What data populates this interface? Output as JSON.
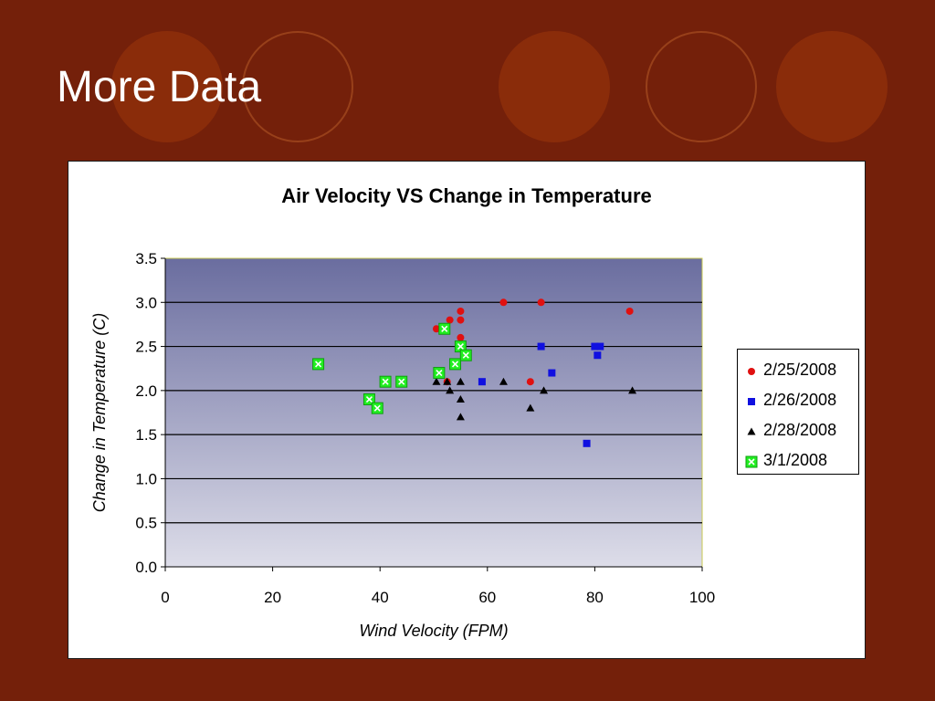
{
  "slide": {
    "title": "More Data"
  },
  "colors": {
    "background": "#74200a",
    "circle": "#8a2c0a",
    "ring": "#98401a"
  },
  "chart_data": {
    "type": "scatter",
    "title": "Air Velocity VS Change in Temperature",
    "xlabel": "Wind Velocity (FPM)",
    "ylabel": "Change in Temperature (C)",
    "xlim": [
      0,
      100
    ],
    "ylim": [
      0,
      3.5
    ],
    "xticks": [
      "0",
      "20",
      "40",
      "60",
      "80",
      "100"
    ],
    "yticks": [
      "0.0",
      "0.5",
      "1.0",
      "1.5",
      "2.0",
      "2.5",
      "3.0",
      "3.5"
    ],
    "grid": "horizontal",
    "legend_position": "right",
    "series": [
      {
        "name": "2/25/2008",
        "marker": "circle",
        "color": "#e01010",
        "points": [
          [
            50.5,
            2.7
          ],
          [
            52.5,
            2.1
          ],
          [
            53,
            2.8
          ],
          [
            55,
            2.9
          ],
          [
            55,
            2.8
          ],
          [
            55,
            2.6
          ],
          [
            63,
            3.0
          ],
          [
            68,
            2.1
          ],
          [
            70,
            3.0
          ],
          [
            86.5,
            2.9
          ]
        ]
      },
      {
        "name": "2/26/2008",
        "marker": "square",
        "color": "#1010e0",
        "points": [
          [
            59,
            2.1
          ],
          [
            70,
            2.5
          ],
          [
            72,
            2.2
          ],
          [
            78.5,
            1.4
          ],
          [
            80,
            2.5
          ],
          [
            80.5,
            2.4
          ],
          [
            81,
            2.5
          ]
        ]
      },
      {
        "name": "2/28/2008",
        "marker": "triangle",
        "color": "#000000",
        "points": [
          [
            50.5,
            2.1
          ],
          [
            52.5,
            2.1
          ],
          [
            53,
            2.0
          ],
          [
            55,
            2.1
          ],
          [
            55,
            1.9
          ],
          [
            55,
            1.7
          ],
          [
            63,
            2.1
          ],
          [
            68,
            1.8
          ],
          [
            70.5,
            2.0
          ],
          [
            87,
            2.0
          ]
        ]
      },
      {
        "name": "3/1/2008",
        "marker": "x-square",
        "color": "#22ee22",
        "points": [
          [
            28.5,
            2.3
          ],
          [
            38,
            1.9
          ],
          [
            39.5,
            1.8
          ],
          [
            41,
            2.1
          ],
          [
            44,
            2.1
          ],
          [
            51,
            2.2
          ],
          [
            52,
            2.7
          ],
          [
            54,
            2.3
          ],
          [
            55,
            2.5
          ],
          [
            56,
            2.4
          ]
        ]
      }
    ]
  }
}
